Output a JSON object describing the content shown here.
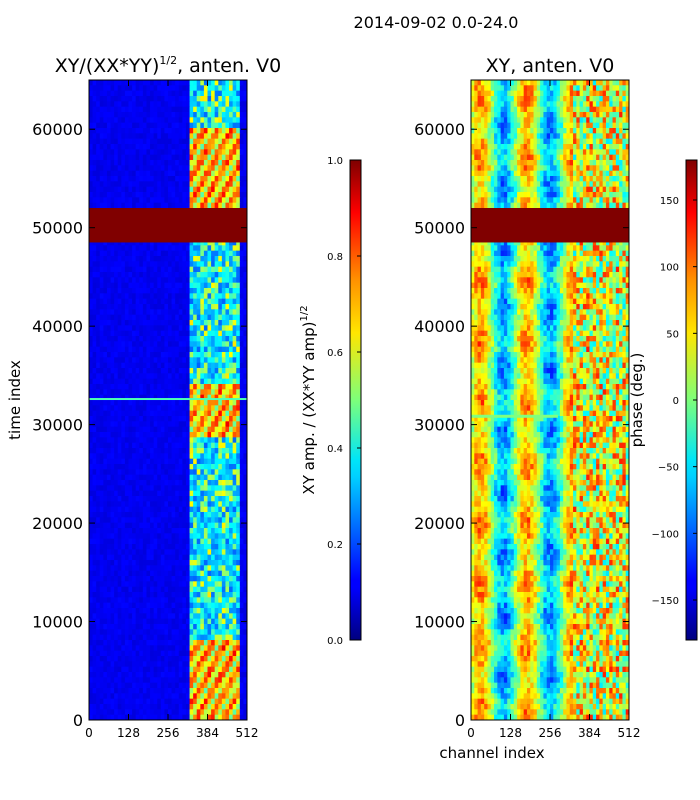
{
  "suptitle": "2014-09-02 0.0-24.0",
  "chart_data": [
    {
      "type": "heatmap",
      "title_prefix": "XY/(XX*YY)",
      "title_sup": "1/2",
      "title_suffix": ", anten. V0",
      "xlabel": "",
      "ylabel": "time index",
      "xlim": [
        0,
        512
      ],
      "ylim": [
        0,
        65000
      ],
      "xticks": [
        0,
        128,
        256,
        384,
        512
      ],
      "yticks": [
        0,
        10000,
        20000,
        30000,
        40000,
        50000,
        60000
      ],
      "colormap": "jet",
      "colorbar": {
        "label_prefix": "XY amp. / (XX*YY amp)",
        "label_sup": "1/2",
        "range": [
          0.0,
          1.0
        ],
        "ticks": [
          "0.0",
          "0.2",
          "0.4",
          "0.6",
          "0.8",
          "1.0"
        ],
        "tick_values": [
          0.0,
          0.2,
          0.4,
          0.6,
          0.8,
          1.0
        ]
      },
      "saturated_time_band": [
        48500,
        52000
      ],
      "active_channel_range": [
        325,
        485
      ],
      "bright_time_ranges": [
        [
          28500,
          34000
        ],
        [
          0,
          8000
        ],
        [
          52000,
          60000
        ]
      ]
    },
    {
      "type": "heatmap",
      "title": "XY, anten. V0",
      "xlabel": "channel index",
      "ylabel": "",
      "xlim": [
        0,
        512
      ],
      "ylim": [
        0,
        65000
      ],
      "xticks": [
        0,
        128,
        256,
        384,
        512
      ],
      "yticks": [
        0,
        10000,
        20000,
        30000,
        40000,
        50000,
        60000
      ],
      "colormap": "jet",
      "colorbar": {
        "label": "phase (deg.)",
        "range": [
          -180,
          180
        ],
        "ticks": [
          "150",
          "100",
          "50",
          "0",
          "−50",
          "−100",
          "−150"
        ],
        "tick_values": [
          150,
          100,
          50,
          0,
          -50,
          -100,
          -150
        ]
      },
      "saturated_time_band": [
        48500,
        52000
      ]
    }
  ]
}
